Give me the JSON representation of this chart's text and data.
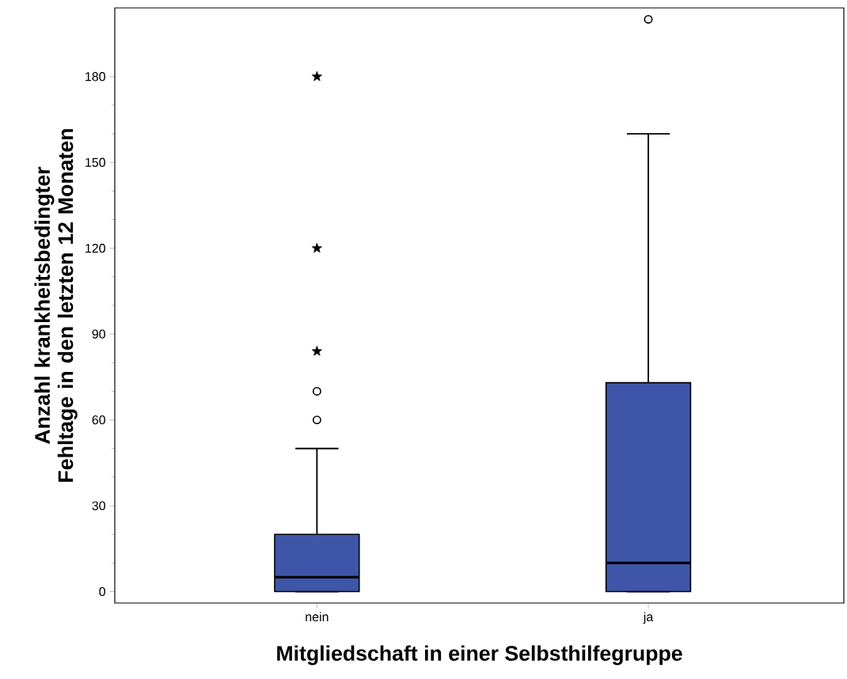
{
  "chart_data": {
    "type": "box",
    "xlabel": "Mitgliedschaft in einer Selbsthilfegruppe",
    "ylabel": "Anzahl krankheitsbedingter Fehltage in den letzten 12 Monaten",
    "categories": [
      "nein",
      "ja"
    ],
    "color": "#3f56a8",
    "boxes": [
      {
        "low": 0,
        "q1": 0,
        "median": 5,
        "q3": 20,
        "high": 50,
        "outliers": [
          60,
          70
        ]
      },
      {
        "low": 0,
        "q1": 0,
        "median": 10,
        "q3": 73,
        "high": 160,
        "outliers": [
          200
        ]
      }
    ],
    "series": [
      {
        "type": "scatter",
        "marker": "star",
        "color": "#000000",
        "x": [
          "nein",
          "nein",
          "nein"
        ],
        "values": [
          84,
          120,
          180
        ]
      }
    ],
    "ylim": [
      -4,
      204
    ],
    "yticks": [
      0,
      30,
      60,
      90,
      120,
      150,
      180
    ]
  }
}
